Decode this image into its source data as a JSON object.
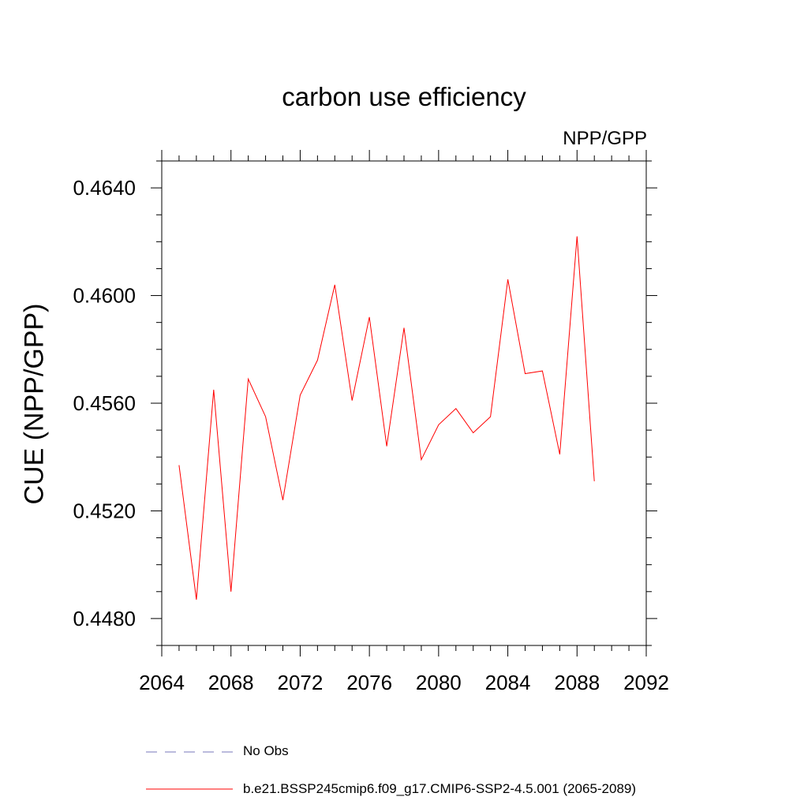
{
  "chart_data": {
    "type": "line",
    "title": "carbon use efficiency",
    "subtitle": "NPP/GPP",
    "ylabel": "CUE  (NPP/GPP)",
    "xlabel": "",
    "xlim": [
      2064,
      2092
    ],
    "ylim": [
      0.447,
      0.465
    ],
    "xticks": [
      "2064",
      "2068",
      "2072",
      "2076",
      "2080",
      "2084",
      "2088",
      "2092"
    ],
    "yticks": [
      "0.4480",
      "0.4520",
      "0.4560",
      "0.4600",
      "0.4640"
    ],
    "x": [
      2065,
      2066,
      2067,
      2068,
      2069,
      2070,
      2071,
      2072,
      2073,
      2074,
      2075,
      2076,
      2077,
      2078,
      2079,
      2080,
      2081,
      2082,
      2083,
      2084,
      2085,
      2086,
      2087,
      2088,
      2089
    ],
    "series": [
      {
        "name": "b.e21.BSSP245cmip6.f09_g17.CMIP6-SSP2-4.5.001 (2065-2089)",
        "color": "#ff0000",
        "dash": "solid",
        "values": [
          0.4537,
          0.4487,
          0.4565,
          0.449,
          0.4569,
          0.4555,
          0.4524,
          0.4563,
          0.4576,
          0.4604,
          0.4561,
          0.4592,
          0.4544,
          0.4588,
          0.4539,
          0.4552,
          0.4558,
          0.4549,
          0.4555,
          0.4606,
          0.4571,
          0.4572,
          0.4541,
          0.4622,
          0.4531
        ]
      }
    ],
    "legend": [
      {
        "label": "No Obs",
        "color": "#7777bb",
        "dash": "dashed"
      },
      {
        "label": "b.e21.BSSP245cmip6.f09_g17.CMIP6-SSP2-4.5.001 (2065-2089)",
        "color": "#ff0000",
        "dash": "solid"
      }
    ]
  }
}
